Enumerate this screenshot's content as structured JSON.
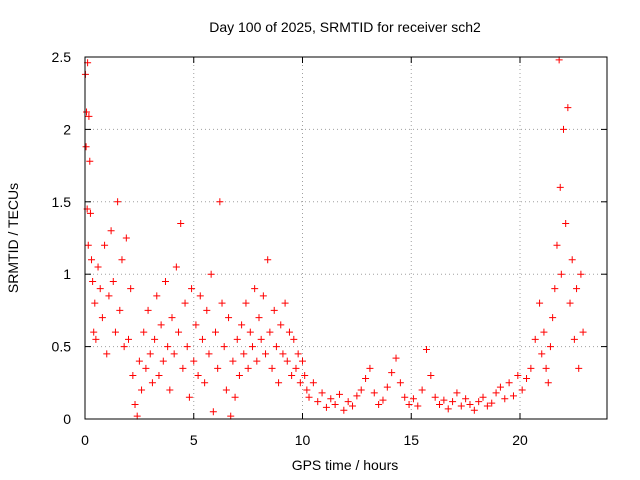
{
  "chart_data": {
    "type": "scatter",
    "title": "Day 100 of 2025, SRMTID for receiver sch2",
    "xlabel": "GPS time / hours",
    "ylabel": "SRMTID / TECUs",
    "xlim": [
      0,
      24
    ],
    "ylim": [
      0,
      2.5
    ],
    "xticks": [
      0,
      5,
      10,
      15,
      20
    ],
    "xtick_labels": [
      "0",
      "5",
      "10",
      "15",
      "20"
    ],
    "yticks": [
      0,
      0.5,
      1,
      1.5,
      2,
      2.5
    ],
    "ytick_labels": [
      "0",
      "0.5",
      "1",
      "1.5",
      "2",
      "2.5"
    ],
    "grid": true,
    "marker": "+",
    "color": "#ff0000",
    "series": [
      {
        "name": "SRMTID",
        "points": [
          [
            0.02,
            2.38
          ],
          [
            0.05,
            1.88
          ],
          [
            0.07,
            2.12
          ],
          [
            0.1,
            1.45
          ],
          [
            0.12,
            2.46
          ],
          [
            0.15,
            1.2
          ],
          [
            0.18,
            2.09
          ],
          [
            0.22,
            1.78
          ],
          [
            0.25,
            1.42
          ],
          [
            0.3,
            1.1
          ],
          [
            0.35,
            0.95
          ],
          [
            0.4,
            0.6
          ],
          [
            0.45,
            0.8
          ],
          [
            0.5,
            0.55
          ],
          [
            0.6,
            1.05
          ],
          [
            0.7,
            0.9
          ],
          [
            0.8,
            0.7
          ],
          [
            0.9,
            1.2
          ],
          [
            1.0,
            0.45
          ],
          [
            1.1,
            0.85
          ],
          [
            1.2,
            1.3
          ],
          [
            1.3,
            0.95
          ],
          [
            1.4,
            0.6
          ],
          [
            1.5,
            1.5
          ],
          [
            1.6,
            0.75
          ],
          [
            1.7,
            1.1
          ],
          [
            1.8,
            0.5
          ],
          [
            1.9,
            1.25
          ],
          [
            2.0,
            0.55
          ],
          [
            2.1,
            0.9
          ],
          [
            2.2,
            0.3
          ],
          [
            2.3,
            0.1
          ],
          [
            2.4,
            0.02
          ],
          [
            2.5,
            0.4
          ],
          [
            2.6,
            0.2
          ],
          [
            2.7,
            0.6
          ],
          [
            2.8,
            0.35
          ],
          [
            2.9,
            0.75
          ],
          [
            3.0,
            0.45
          ],
          [
            3.1,
            0.25
          ],
          [
            3.2,
            0.55
          ],
          [
            3.3,
            0.85
          ],
          [
            3.4,
            0.3
          ],
          [
            3.5,
            0.65
          ],
          [
            3.6,
            0.4
          ],
          [
            3.7,
            0.95
          ],
          [
            3.8,
            0.5
          ],
          [
            3.9,
            0.2
          ],
          [
            4.0,
            0.7
          ],
          [
            4.1,
            0.45
          ],
          [
            4.2,
            1.05
          ],
          [
            4.3,
            0.6
          ],
          [
            4.4,
            1.35
          ],
          [
            4.5,
            0.35
          ],
          [
            4.6,
            0.8
          ],
          [
            4.7,
            0.5
          ],
          [
            4.8,
            0.15
          ],
          [
            4.9,
            0.9
          ],
          [
            5.0,
            0.4
          ],
          [
            5.1,
            0.65
          ],
          [
            5.2,
            0.3
          ],
          [
            5.3,
            0.85
          ],
          [
            5.4,
            0.55
          ],
          [
            5.5,
            0.25
          ],
          [
            5.6,
            0.75
          ],
          [
            5.7,
            0.45
          ],
          [
            5.8,
            1.0
          ],
          [
            5.9,
            0.05
          ],
          [
            6.0,
            0.6
          ],
          [
            6.1,
            0.35
          ],
          [
            6.2,
            1.5
          ],
          [
            6.3,
            0.8
          ],
          [
            6.4,
            0.5
          ],
          [
            6.5,
            0.2
          ],
          [
            6.6,
            0.7
          ],
          [
            6.7,
            0.02
          ],
          [
            6.8,
            0.4
          ],
          [
            6.9,
            0.15
          ],
          [
            7.0,
            0.55
          ],
          [
            7.1,
            0.3
          ],
          [
            7.2,
            0.65
          ],
          [
            7.3,
            0.45
          ],
          [
            7.4,
            0.8
          ],
          [
            7.5,
            0.35
          ],
          [
            7.6,
            0.6
          ],
          [
            7.7,
            0.5
          ],
          [
            7.8,
            0.9
          ],
          [
            7.9,
            0.4
          ],
          [
            8.0,
            0.7
          ],
          [
            8.1,
            0.55
          ],
          [
            8.2,
            0.85
          ],
          [
            8.3,
            0.45
          ],
          [
            8.4,
            1.1
          ],
          [
            8.5,
            0.6
          ],
          [
            8.6,
            0.35
          ],
          [
            8.7,
            0.75
          ],
          [
            8.8,
            0.5
          ],
          [
            8.9,
            0.25
          ],
          [
            9.0,
            0.65
          ],
          [
            9.1,
            0.45
          ],
          [
            9.2,
            0.8
          ],
          [
            9.3,
            0.4
          ],
          [
            9.4,
            0.6
          ],
          [
            9.5,
            0.3
          ],
          [
            9.6,
            0.55
          ],
          [
            9.7,
            0.35
          ],
          [
            9.8,
            0.45
          ],
          [
            9.9,
            0.25
          ],
          [
            10.0,
            0.4
          ],
          [
            10.1,
            0.3
          ],
          [
            10.2,
            0.2
          ],
          [
            10.3,
            0.15
          ],
          [
            10.5,
            0.25
          ],
          [
            10.7,
            0.12
          ],
          [
            10.9,
            0.18
          ],
          [
            11.1,
            0.08
          ],
          [
            11.3,
            0.14
          ],
          [
            11.5,
            0.1
          ],
          [
            11.7,
            0.17
          ],
          [
            11.9,
            0.06
          ],
          [
            12.1,
            0.12
          ],
          [
            12.3,
            0.09
          ],
          [
            12.5,
            0.16
          ],
          [
            12.7,
            0.2
          ],
          [
            12.9,
            0.28
          ],
          [
            13.1,
            0.35
          ],
          [
            13.3,
            0.18
          ],
          [
            13.5,
            0.1
          ],
          [
            13.7,
            0.13
          ],
          [
            13.9,
            0.22
          ],
          [
            14.1,
            0.32
          ],
          [
            14.3,
            0.42
          ],
          [
            14.5,
            0.25
          ],
          [
            14.7,
            0.15
          ],
          [
            14.9,
            0.1
          ],
          [
            15.1,
            0.14
          ],
          [
            15.3,
            0.09
          ],
          [
            15.5,
            0.2
          ],
          [
            15.7,
            0.48
          ],
          [
            15.9,
            0.3
          ],
          [
            16.1,
            0.15
          ],
          [
            16.3,
            0.1
          ],
          [
            16.5,
            0.13
          ],
          [
            16.7,
            0.07
          ],
          [
            16.9,
            0.12
          ],
          [
            17.1,
            0.18
          ],
          [
            17.3,
            0.09
          ],
          [
            17.5,
            0.14
          ],
          [
            17.7,
            0.1
          ],
          [
            17.9,
            0.06
          ],
          [
            18.1,
            0.12
          ],
          [
            18.3,
            0.15
          ],
          [
            18.5,
            0.09
          ],
          [
            18.7,
            0.11
          ],
          [
            18.9,
            0.18
          ],
          [
            19.1,
            0.22
          ],
          [
            19.3,
            0.14
          ],
          [
            19.5,
            0.25
          ],
          [
            19.7,
            0.16
          ],
          [
            19.9,
            0.3
          ],
          [
            20.1,
            0.2
          ],
          [
            20.3,
            0.28
          ],
          [
            20.5,
            0.35
          ],
          [
            20.7,
            0.55
          ],
          [
            20.9,
            0.8
          ],
          [
            21.0,
            0.45
          ],
          [
            21.1,
            0.6
          ],
          [
            21.2,
            0.35
          ],
          [
            21.3,
            0.25
          ],
          [
            21.4,
            0.5
          ],
          [
            21.5,
            0.7
          ],
          [
            21.6,
            0.9
          ],
          [
            21.7,
            1.2
          ],
          [
            21.8,
            2.48
          ],
          [
            21.85,
            1.6
          ],
          [
            21.9,
            1.0
          ],
          [
            22.0,
            2.0
          ],
          [
            22.1,
            1.35
          ],
          [
            22.2,
            2.15
          ],
          [
            22.3,
            0.8
          ],
          [
            22.4,
            1.1
          ],
          [
            22.5,
            0.55
          ],
          [
            22.6,
            0.9
          ],
          [
            22.7,
            0.35
          ],
          [
            22.8,
            1.0
          ],
          [
            22.9,
            0.6
          ]
        ]
      }
    ]
  }
}
